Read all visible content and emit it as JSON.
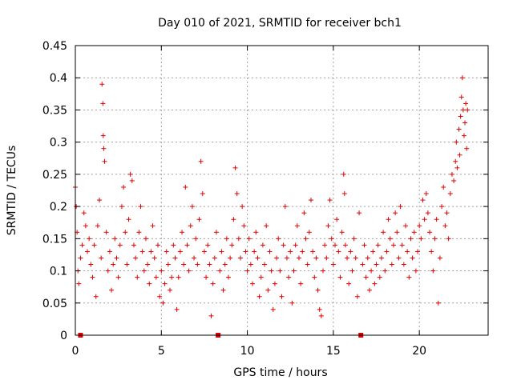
{
  "chart_data": {
    "type": "scatter",
    "title": "Day 010 of 2021, SRMTID for receiver bch1",
    "xlabel": "GPS time / hours",
    "ylabel": "SRMTID / TECUs",
    "xlim": [
      0,
      24
    ],
    "ylim": [
      0,
      0.45
    ],
    "xticks": [
      0,
      5,
      10,
      15,
      20
    ],
    "xtick_labels": [
      "0",
      "5",
      "10",
      "15",
      "20"
    ],
    "yticks": [
      0,
      0.05,
      0.1,
      0.15,
      0.2,
      0.25,
      0.3,
      0.35,
      0.4,
      0.45
    ],
    "ytick_labels": [
      "0",
      "0.05",
      "0.1",
      "0.15",
      "0.2",
      "0.25",
      "0.3",
      "0.35",
      "0.4",
      "0.45"
    ],
    "grid": true,
    "marker": "plus",
    "color": "#e00000",
    "zero_markers_x": [
      0.3,
      8.3,
      16.6
    ],
    "series": [
      {
        "name": "SRMTID",
        "points": [
          [
            0.0,
            0.23
          ],
          [
            0.05,
            0.2
          ],
          [
            0.1,
            0.16
          ],
          [
            0.15,
            0.1
          ],
          [
            0.2,
            0.08
          ],
          [
            0.3,
            0.12
          ],
          [
            0.4,
            0.14
          ],
          [
            0.5,
            0.19
          ],
          [
            0.6,
            0.17
          ],
          [
            0.7,
            0.13
          ],
          [
            0.8,
            0.15
          ],
          [
            0.9,
            0.11
          ],
          [
            1.0,
            0.09
          ],
          [
            1.1,
            0.14
          ],
          [
            1.2,
            0.06
          ],
          [
            1.3,
            0.17
          ],
          [
            1.4,
            0.21
          ],
          [
            1.5,
            0.12
          ],
          [
            1.55,
            0.39
          ],
          [
            1.6,
            0.36
          ],
          [
            1.62,
            0.31
          ],
          [
            1.65,
            0.29
          ],
          [
            1.7,
            0.27
          ],
          [
            1.8,
            0.16
          ],
          [
            1.9,
            0.1
          ],
          [
            2.0,
            0.13
          ],
          [
            2.1,
            0.07
          ],
          [
            2.2,
            0.11
          ],
          [
            2.3,
            0.15
          ],
          [
            2.4,
            0.12
          ],
          [
            2.5,
            0.09
          ],
          [
            2.6,
            0.14
          ],
          [
            2.7,
            0.2
          ],
          [
            2.8,
            0.23
          ],
          [
            2.9,
            0.16
          ],
          [
            3.0,
            0.11
          ],
          [
            3.1,
            0.18
          ],
          [
            3.2,
            0.25
          ],
          [
            3.3,
            0.24
          ],
          [
            3.4,
            0.14
          ],
          [
            3.5,
            0.12
          ],
          [
            3.6,
            0.09
          ],
          [
            3.7,
            0.16
          ],
          [
            3.8,
            0.2
          ],
          [
            3.9,
            0.13
          ],
          [
            4.0,
            0.1
          ],
          [
            4.1,
            0.15
          ],
          [
            4.2,
            0.11
          ],
          [
            4.3,
            0.08
          ],
          [
            4.4,
            0.13
          ],
          [
            4.5,
            0.17
          ],
          [
            4.6,
            0.12
          ],
          [
            4.7,
            0.09
          ],
          [
            4.8,
            0.14
          ],
          [
            4.9,
            0.06
          ],
          [
            5.0,
            0.1
          ],
          [
            5.1,
            0.05
          ],
          [
            5.2,
            0.08
          ],
          [
            5.3,
            0.13
          ],
          [
            5.4,
            0.11
          ],
          [
            5.5,
            0.07
          ],
          [
            5.6,
            0.09
          ],
          [
            5.7,
            0.14
          ],
          [
            5.8,
            0.12
          ],
          [
            5.9,
            0.04
          ],
          [
            6.0,
            0.09
          ],
          [
            6.1,
            0.13
          ],
          [
            6.2,
            0.16
          ],
          [
            6.3,
            0.11
          ],
          [
            6.4,
            0.23
          ],
          [
            6.5,
            0.14
          ],
          [
            6.6,
            0.1
          ],
          [
            6.7,
            0.17
          ],
          [
            6.8,
            0.2
          ],
          [
            6.9,
            0.12
          ],
          [
            7.0,
            0.15
          ],
          [
            7.1,
            0.11
          ],
          [
            7.2,
            0.18
          ],
          [
            7.3,
            0.27
          ],
          [
            7.4,
            0.22
          ],
          [
            7.5,
            0.13
          ],
          [
            7.6,
            0.09
          ],
          [
            7.7,
            0.14
          ],
          [
            7.8,
            0.11
          ],
          [
            7.9,
            0.03
          ],
          [
            8.0,
            0.08
          ],
          [
            8.1,
            0.12
          ],
          [
            8.2,
            0.16
          ],
          [
            8.4,
            0.1
          ],
          [
            8.5,
            0.13
          ],
          [
            8.6,
            0.07
          ],
          [
            8.7,
            0.11
          ],
          [
            8.8,
            0.15
          ],
          [
            8.9,
            0.09
          ],
          [
            9.0,
            0.12
          ],
          [
            9.1,
            0.14
          ],
          [
            9.2,
            0.18
          ],
          [
            9.3,
            0.26
          ],
          [
            9.4,
            0.22
          ],
          [
            9.5,
            0.15
          ],
          [
            9.6,
            0.12
          ],
          [
            9.7,
            0.2
          ],
          [
            9.8,
            0.17
          ],
          [
            9.9,
            0.13
          ],
          [
            10.0,
            0.1
          ],
          [
            10.1,
            0.15
          ],
          [
            10.2,
            0.11
          ],
          [
            10.3,
            0.08
          ],
          [
            10.4,
            0.13
          ],
          [
            10.5,
            0.16
          ],
          [
            10.6,
            0.12
          ],
          [
            10.7,
            0.06
          ],
          [
            10.8,
            0.09
          ],
          [
            10.9,
            0.14
          ],
          [
            11.0,
            0.11
          ],
          [
            11.1,
            0.17
          ],
          [
            11.2,
            0.07
          ],
          [
            11.3,
            0.13
          ],
          [
            11.4,
            0.1
          ],
          [
            11.5,
            0.04
          ],
          [
            11.6,
            0.08
          ],
          [
            11.7,
            0.12
          ],
          [
            11.8,
            0.15
          ],
          [
            11.9,
            0.1
          ],
          [
            12.0,
            0.06
          ],
          [
            12.1,
            0.14
          ],
          [
            12.2,
            0.2
          ],
          [
            12.3,
            0.12
          ],
          [
            12.4,
            0.09
          ],
          [
            12.5,
            0.13
          ],
          [
            12.6,
            0.05
          ],
          [
            12.7,
            0.1
          ],
          [
            12.8,
            0.14
          ],
          [
            12.9,
            0.17
          ],
          [
            13.0,
            0.12
          ],
          [
            13.1,
            0.08
          ],
          [
            13.2,
            0.13
          ],
          [
            13.3,
            0.19
          ],
          [
            13.4,
            0.15
          ],
          [
            13.5,
            0.11
          ],
          [
            13.6,
            0.16
          ],
          [
            13.7,
            0.21
          ],
          [
            13.8,
            0.13
          ],
          [
            13.9,
            0.09
          ],
          [
            14.0,
            0.12
          ],
          [
            14.1,
            0.07
          ],
          [
            14.2,
            0.04
          ],
          [
            14.3,
            0.03
          ],
          [
            14.4,
            0.1
          ],
          [
            14.5,
            0.14
          ],
          [
            14.6,
            0.12
          ],
          [
            14.7,
            0.17
          ],
          [
            14.8,
            0.21
          ],
          [
            14.9,
            0.15
          ],
          [
            15.0,
            0.11
          ],
          [
            15.1,
            0.14
          ],
          [
            15.2,
            0.18
          ],
          [
            15.3,
            0.13
          ],
          [
            15.4,
            0.09
          ],
          [
            15.5,
            0.16
          ],
          [
            15.6,
            0.25
          ],
          [
            15.65,
            0.22
          ],
          [
            15.7,
            0.14
          ],
          [
            15.8,
            0.12
          ],
          [
            15.9,
            0.08
          ],
          [
            16.0,
            0.13
          ],
          [
            16.1,
            0.1
          ],
          [
            16.2,
            0.15
          ],
          [
            16.3,
            0.12
          ],
          [
            16.4,
            0.06
          ],
          [
            16.5,
            0.19
          ],
          [
            16.7,
            0.11
          ],
          [
            16.8,
            0.14
          ],
          [
            16.9,
            0.09
          ],
          [
            17.0,
            0.12
          ],
          [
            17.1,
            0.07
          ],
          [
            17.2,
            0.1
          ],
          [
            17.3,
            0.13
          ],
          [
            17.4,
            0.08
          ],
          [
            17.5,
            0.11
          ],
          [
            17.6,
            0.14
          ],
          [
            17.7,
            0.09
          ],
          [
            17.8,
            0.12
          ],
          [
            17.9,
            0.16
          ],
          [
            18.0,
            0.1
          ],
          [
            18.1,
            0.13
          ],
          [
            18.2,
            0.18
          ],
          [
            18.3,
            0.15
          ],
          [
            18.4,
            0.11
          ],
          [
            18.5,
            0.14
          ],
          [
            18.6,
            0.19
          ],
          [
            18.7,
            0.16
          ],
          [
            18.8,
            0.12
          ],
          [
            18.9,
            0.2
          ],
          [
            19.0,
            0.14
          ],
          [
            19.1,
            0.11
          ],
          [
            19.2,
            0.17
          ],
          [
            19.3,
            0.13
          ],
          [
            19.4,
            0.09
          ],
          [
            19.5,
            0.15
          ],
          [
            19.6,
            0.12
          ],
          [
            19.7,
            0.16
          ],
          [
            19.8,
            0.1
          ],
          [
            19.9,
            0.13
          ],
          [
            20.0,
            0.17
          ],
          [
            20.1,
            0.15
          ],
          [
            20.2,
            0.21
          ],
          [
            20.3,
            0.18
          ],
          [
            20.4,
            0.22
          ],
          [
            20.5,
            0.19
          ],
          [
            20.6,
            0.16
          ],
          [
            20.7,
            0.13
          ],
          [
            20.8,
            0.1
          ],
          [
            20.9,
            0.15
          ],
          [
            21.0,
            0.18
          ],
          [
            21.1,
            0.05
          ],
          [
            21.2,
            0.12
          ],
          [
            21.3,
            0.2
          ],
          [
            21.4,
            0.23
          ],
          [
            21.5,
            0.17
          ],
          [
            21.6,
            0.19
          ],
          [
            21.7,
            0.15
          ],
          [
            21.8,
            0.22
          ],
          [
            21.9,
            0.25
          ],
          [
            22.0,
            0.24
          ],
          [
            22.1,
            0.27
          ],
          [
            22.15,
            0.3
          ],
          [
            22.2,
            0.26
          ],
          [
            22.3,
            0.32
          ],
          [
            22.35,
            0.28
          ],
          [
            22.4,
            0.34
          ],
          [
            22.45,
            0.37
          ],
          [
            22.5,
            0.4
          ],
          [
            22.55,
            0.35
          ],
          [
            22.6,
            0.31
          ],
          [
            22.65,
            0.33
          ],
          [
            22.7,
            0.36
          ],
          [
            22.75,
            0.29
          ],
          [
            22.8,
            0.35
          ]
        ]
      }
    ]
  }
}
